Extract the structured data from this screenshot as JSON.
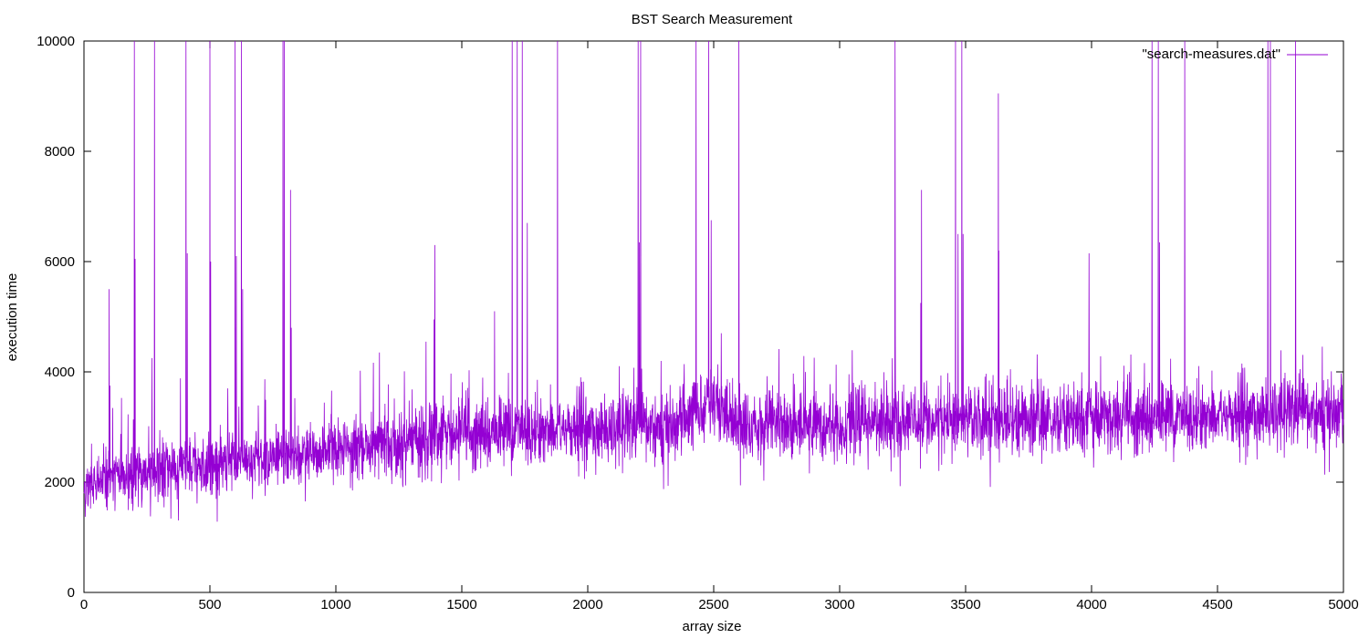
{
  "chart_data": {
    "type": "line",
    "title": "BST Search Measurement",
    "xlabel": "array size",
    "ylabel": "execution time",
    "xlim": [
      0,
      5000
    ],
    "ylim": [
      0,
      10000
    ],
    "x_ticks": [
      0,
      500,
      1000,
      1500,
      2000,
      2500,
      3000,
      3500,
      4000,
      4500,
      5000
    ],
    "y_ticks": [
      0,
      2000,
      4000,
      6000,
      8000,
      10000
    ],
    "x_tick_labels": [
      "0",
      "500",
      "1000",
      "1500",
      "2000",
      "2500",
      "3000",
      "3500",
      "4000",
      "4500",
      "5000"
    ],
    "y_tick_labels": [
      "0",
      "2000",
      "4000",
      "6000",
      "8000",
      "10000"
    ],
    "grid": false,
    "legend_position": "top-right",
    "series": [
      {
        "name": "\"search-measures.dat\"",
        "color": "#9400d3",
        "description": "noisy execution time per array size, one sample per size",
        "x_start": 0,
        "x_end": 5000,
        "trend_points": [
          [
            0,
            1900
          ],
          [
            100,
            2050
          ],
          [
            200,
            2150
          ],
          [
            300,
            2200
          ],
          [
            400,
            2250
          ],
          [
            500,
            2300
          ],
          [
            600,
            2400
          ],
          [
            700,
            2450
          ],
          [
            800,
            2450
          ],
          [
            900,
            2500
          ],
          [
            1000,
            2550
          ],
          [
            1100,
            2600
          ],
          [
            1200,
            2700
          ],
          [
            1300,
            2750
          ],
          [
            1400,
            2800
          ],
          [
            1500,
            2850
          ],
          [
            1600,
            2900
          ],
          [
            1700,
            2950
          ],
          [
            1800,
            2950
          ],
          [
            1900,
            2950
          ],
          [
            2000,
            2950
          ],
          [
            2100,
            2950
          ],
          [
            2200,
            3000
          ],
          [
            2300,
            3000
          ],
          [
            2400,
            3100
          ],
          [
            2450,
            3400
          ],
          [
            2500,
            3500
          ],
          [
            2550,
            3200
          ],
          [
            2600,
            3000
          ],
          [
            2700,
            3050
          ],
          [
            2800,
            3050
          ],
          [
            2900,
            3050
          ],
          [
            3000,
            3050
          ],
          [
            3100,
            3100
          ],
          [
            3200,
            3100
          ],
          [
            3300,
            3100
          ],
          [
            3400,
            3100
          ],
          [
            3500,
            3100
          ],
          [
            3600,
            3150
          ],
          [
            3700,
            3150
          ],
          [
            3800,
            3150
          ],
          [
            3900,
            3150
          ],
          [
            4000,
            3200
          ],
          [
            4100,
            3150
          ],
          [
            4200,
            3150
          ],
          [
            4300,
            3200
          ],
          [
            4400,
            3200
          ],
          [
            4500,
            3200
          ],
          [
            4600,
            3200
          ],
          [
            4700,
            3250
          ],
          [
            4800,
            3250
          ],
          [
            4900,
            3250
          ],
          [
            5000,
            3300
          ]
        ],
        "spikes": [
          [
            100,
            5500
          ],
          [
            103,
            3750
          ],
          [
            200,
            10000
          ],
          [
            203,
            6050
          ],
          [
            280,
            10000
          ],
          [
            270,
            4250
          ],
          [
            405,
            10000
          ],
          [
            410,
            6150
          ],
          [
            500,
            10000
          ],
          [
            503,
            6000
          ],
          [
            600,
            10000
          ],
          [
            605,
            6100
          ],
          [
            625,
            10000
          ],
          [
            630,
            5500
          ],
          [
            790,
            10000
          ],
          [
            795,
            10000
          ],
          [
            820,
            7300
          ],
          [
            823,
            4800
          ],
          [
            1393,
            6300
          ],
          [
            1390,
            4950
          ],
          [
            1630,
            5100
          ],
          [
            1700,
            10000
          ],
          [
            1720,
            10000
          ],
          [
            1740,
            10000
          ],
          [
            1760,
            6700
          ],
          [
            1880,
            10000
          ],
          [
            2200,
            10000
          ],
          [
            2210,
            10000
          ],
          [
            2205,
            6350
          ],
          [
            2430,
            10000
          ],
          [
            2480,
            10000
          ],
          [
            2490,
            6750
          ],
          [
            2530,
            4700
          ],
          [
            2600,
            10000
          ],
          [
            3220,
            10000
          ],
          [
            3325,
            7300
          ],
          [
            3322,
            5250
          ],
          [
            3460,
            10000
          ],
          [
            3470,
            6500
          ],
          [
            3485,
            10000
          ],
          [
            3490,
            6500
          ],
          [
            3630,
            9050
          ],
          [
            3632,
            6200
          ],
          [
            3990,
            6150
          ],
          [
            4240,
            10000
          ],
          [
            4265,
            10000
          ],
          [
            4270,
            6350
          ],
          [
            4370,
            10000
          ],
          [
            4700,
            10000
          ],
          [
            4710,
            10000
          ],
          [
            4810,
            10000
          ]
        ]
      }
    ]
  }
}
